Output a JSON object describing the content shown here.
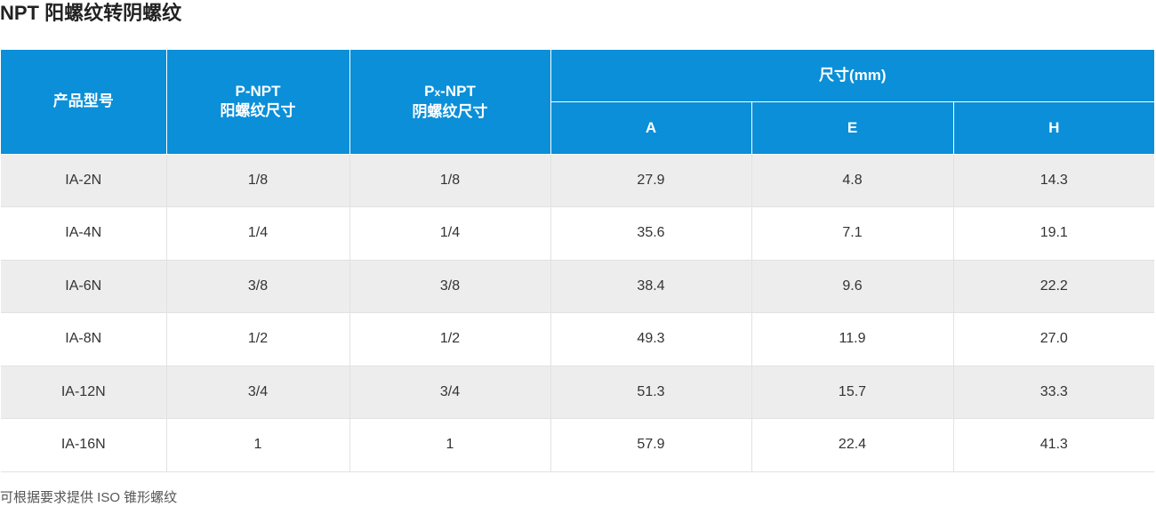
{
  "title": "NPT 阳螺纹转阴螺纹",
  "header": {
    "model": "产品型号",
    "p_npt_line1": "P-NPT",
    "p_npt_line2": "阳螺纹尺寸",
    "px_p": "P",
    "px_sub": "x",
    "px_rest": "-NPT",
    "px_npt_line2": "阴螺纹尺寸",
    "dim_group": "尺寸(mm)",
    "a": "A",
    "e": "E",
    "h": "H"
  },
  "rows": [
    {
      "model": "IA-2N",
      "p_npt": "1/8",
      "px_npt": "1/8",
      "a": "27.9",
      "e": "4.8",
      "h": "14.3"
    },
    {
      "model": "IA-4N",
      "p_npt": "1/4",
      "px_npt": "1/4",
      "a": "35.6",
      "e": "7.1",
      "h": "19.1"
    },
    {
      "model": "IA-6N",
      "p_npt": "3/8",
      "px_npt": "3/8",
      "a": "38.4",
      "e": "9.6",
      "h": "22.2"
    },
    {
      "model": "IA-8N",
      "p_npt": "1/2",
      "px_npt": "1/2",
      "a": "49.3",
      "e": "11.9",
      "h": "27.0"
    },
    {
      "model": "IA-12N",
      "p_npt": "3/4",
      "px_npt": "3/4",
      "a": "51.3",
      "e": "15.7",
      "h": "33.3"
    },
    {
      "model": "IA-16N",
      "p_npt": "1",
      "px_npt": "1",
      "a": "57.9",
      "e": "22.4",
      "h": "41.3"
    }
  ],
  "note": "可根据要求提供 ISO 锥形螺纹",
  "colors": {
    "header_bg": "#0b8fd8",
    "row_alt_bg": "#ededee"
  }
}
